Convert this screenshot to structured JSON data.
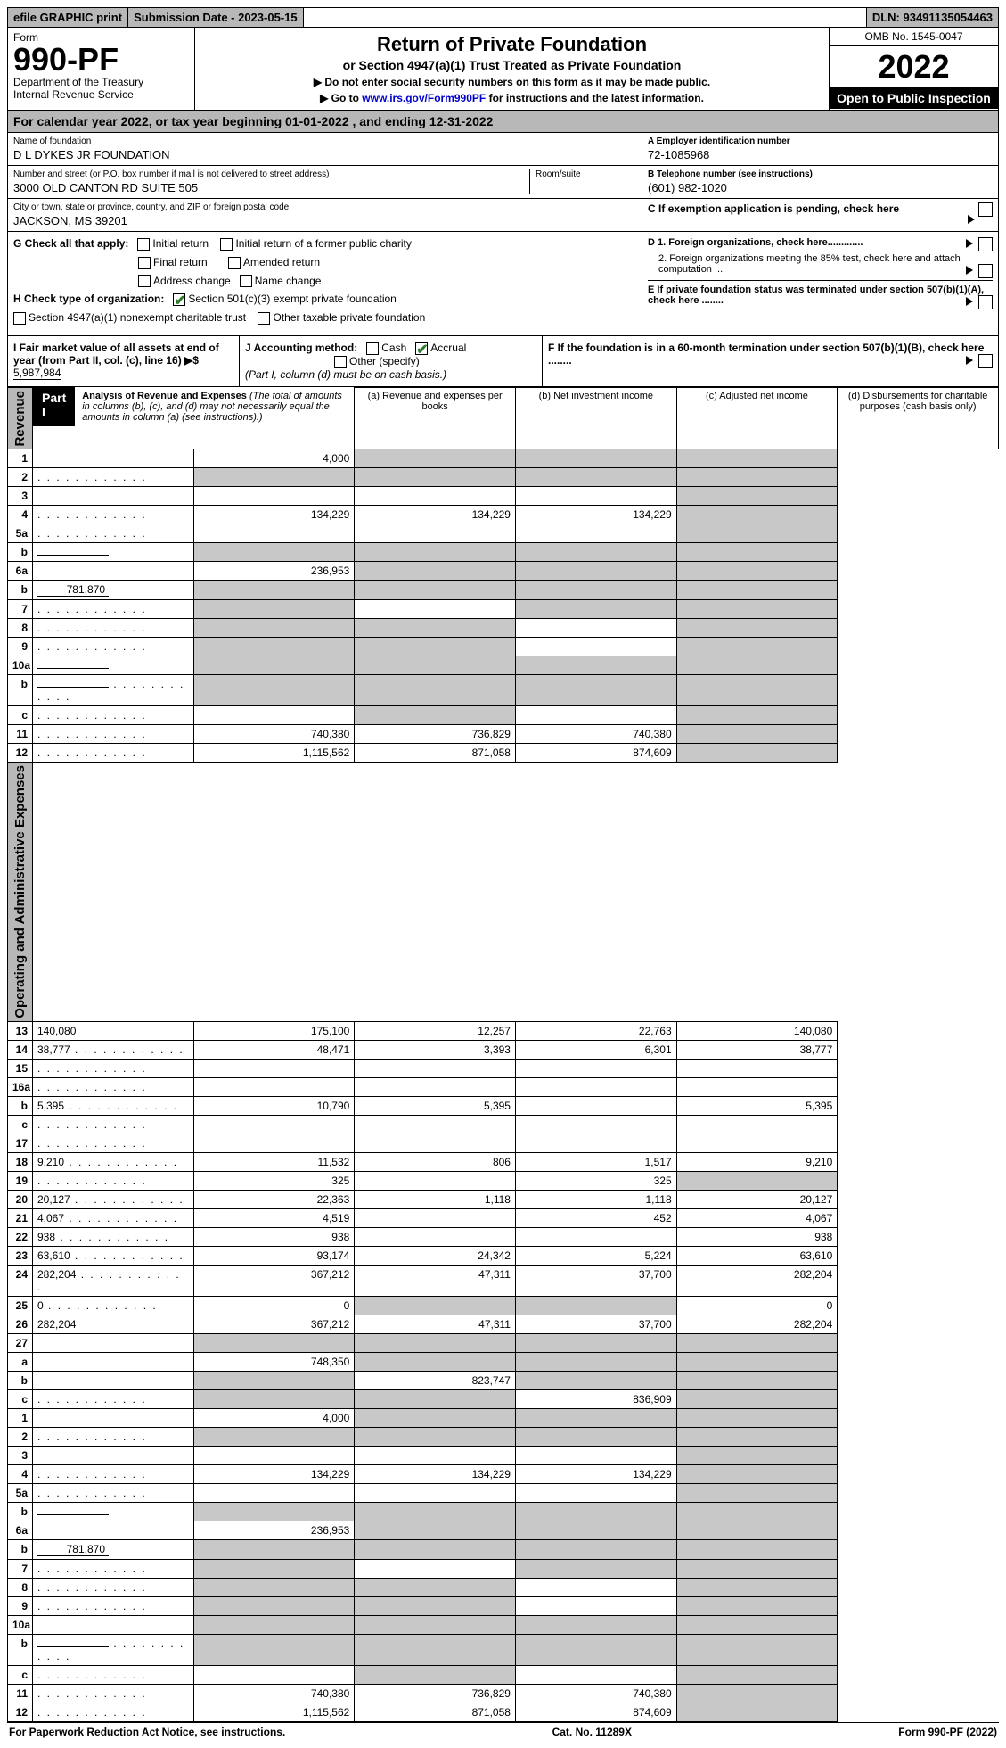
{
  "topbar": {
    "efile": "efile GRAPHIC print",
    "submission": "Submission Date - 2023-05-15",
    "dln": "DLN: 93491135054463"
  },
  "header": {
    "form_word": "Form",
    "form_number": "990-PF",
    "dept1": "Department of the Treasury",
    "dept2": "Internal Revenue Service",
    "title": "Return of Private Foundation",
    "subtitle": "or Section 4947(a)(1) Trust Treated as Private Foundation",
    "inst1": "▶ Do not enter social security numbers on this form as it may be made public.",
    "inst2_pre": "▶ Go to ",
    "inst2_link": "www.irs.gov/Form990PF",
    "inst2_post": " for instructions and the latest information.",
    "omb": "OMB No. 1545-0047",
    "year": "2022",
    "open": "Open to Public Inspection"
  },
  "calendar": "For calendar year 2022, or tax year beginning 01-01-2022              , and ending 12-31-2022",
  "info": {
    "name_lbl": "Name of foundation",
    "name_val": "D L DYKES JR FOUNDATION",
    "addr_lbl": "Number and street (or P.O. box number if mail is not delivered to street address)",
    "addr_val": "3000 OLD CANTON RD SUITE 505",
    "room_lbl": "Room/suite",
    "city_lbl": "City or town, state or province, country, and ZIP or foreign postal code",
    "city_val": "JACKSON, MS  39201",
    "a_lbl": "A Employer identification number",
    "a_val": "72-1085968",
    "b_lbl": "B Telephone number (see instructions)",
    "b_val": "(601) 982-1020",
    "c_lbl": "C If exemption application is pending, check here"
  },
  "g": {
    "label": "G Check all that apply:",
    "initial": "Initial return",
    "final": "Final return",
    "addr": "Address change",
    "initial_former": "Initial return of a former public charity",
    "amended": "Amended return",
    "name": "Name change"
  },
  "h": {
    "label": "H Check type of organization:",
    "c3": "Section 501(c)(3) exempt private foundation",
    "trust": "Section 4947(a)(1) nonexempt charitable trust",
    "other": "Other taxable private foundation"
  },
  "d": {
    "d1": "D 1. Foreign organizations, check here.............",
    "d2": "2. Foreign organizations meeting the 85% test, check here and attach computation ...",
    "e": "E  If private foundation status was terminated under section 507(b)(1)(A), check here ........",
    "f": "F  If the foundation is in a 60-month termination under section 507(b)(1)(B), check here ........"
  },
  "i": {
    "label": "I Fair market value of all assets at end of year (from Part II, col. (c), line 16) ▶$",
    "value": "5,987,984"
  },
  "j": {
    "label": "J Accounting method:",
    "cash": "Cash",
    "accrual": "Accrual",
    "other": "Other (specify)",
    "note": "(Part I, column (d) must be on cash basis.)"
  },
  "part1": {
    "label": "Part I",
    "title": "Analysis of Revenue and Expenses",
    "note": "(The total of amounts in columns (b), (c), and (d) may not necessarily equal the amounts in column (a) (see instructions).)",
    "col_a": "(a)   Revenue and expenses per books",
    "col_b": "(b)   Net investment income",
    "col_c": "(c)   Adjusted net income",
    "col_d": "(d)  Disbursements for charitable purposes (cash basis only)"
  },
  "sidebar": {
    "revenue": "Revenue",
    "expenses": "Operating and Administrative Expenses"
  },
  "rows": [
    {
      "n": "1",
      "d": "",
      "a": "4,000",
      "b": "",
      "c": "",
      "shade": [
        "b",
        "c",
        "d"
      ]
    },
    {
      "n": "2",
      "d": "",
      "dots": true,
      "a": "",
      "b": "",
      "c": "",
      "shade": [
        "a",
        "b",
        "c",
        "d"
      ]
    },
    {
      "n": "3",
      "d": "",
      "a": "",
      "b": "",
      "c": "",
      "shade": [
        "d"
      ]
    },
    {
      "n": "4",
      "d": "",
      "dots": true,
      "a": "134,229",
      "b": "134,229",
      "c": "134,229",
      "shade": [
        "d"
      ]
    },
    {
      "n": "5a",
      "d": "",
      "dots": true,
      "a": "",
      "b": "",
      "c": "",
      "shade": [
        "d"
      ]
    },
    {
      "n": "b",
      "d": "",
      "inline": "",
      "a": "",
      "b": "",
      "c": "",
      "shade": [
        "a",
        "b",
        "c",
        "d"
      ]
    },
    {
      "n": "6a",
      "d": "",
      "a": "236,953",
      "b": "",
      "c": "",
      "shade": [
        "b",
        "c",
        "d"
      ]
    },
    {
      "n": "b",
      "d": "",
      "inline": "781,870",
      "a": "",
      "b": "",
      "c": "",
      "shade": [
        "a",
        "b",
        "c",
        "d"
      ]
    },
    {
      "n": "7",
      "d": "",
      "dots": true,
      "a": "",
      "b": "",
      "c": "",
      "shade": [
        "a",
        "c",
        "d"
      ]
    },
    {
      "n": "8",
      "d": "",
      "dots": true,
      "a": "",
      "b": "",
      "c": "",
      "shade": [
        "a",
        "b",
        "d"
      ]
    },
    {
      "n": "9",
      "d": "",
      "dots": true,
      "a": "",
      "b": "",
      "c": "",
      "shade": [
        "a",
        "b",
        "d"
      ]
    },
    {
      "n": "10a",
      "d": "",
      "inline": "",
      "a": "",
      "b": "",
      "c": "",
      "shade": [
        "a",
        "b",
        "c",
        "d"
      ]
    },
    {
      "n": "b",
      "d": "",
      "dots": true,
      "inline": "",
      "a": "",
      "b": "",
      "c": "",
      "shade": [
        "a",
        "b",
        "c",
        "d"
      ]
    },
    {
      "n": "c",
      "d": "",
      "dots": true,
      "a": "",
      "b": "",
      "c": "",
      "shade": [
        "b",
        "d"
      ]
    },
    {
      "n": "11",
      "d": "",
      "dots": true,
      "a": "740,380",
      "b": "736,829",
      "c": "740,380",
      "shade": [
        "d"
      ]
    },
    {
      "n": "12",
      "d": "",
      "dots": true,
      "a": "1,115,562",
      "b": "871,058",
      "c": "874,609",
      "shade": [
        "d"
      ]
    },
    {
      "n": "13",
      "d": "140,080",
      "a": "175,100",
      "b": "12,257",
      "c": "22,763"
    },
    {
      "n": "14",
      "d": "38,777",
      "dots": true,
      "a": "48,471",
      "b": "3,393",
      "c": "6,301"
    },
    {
      "n": "15",
      "d": "",
      "dots": true,
      "a": "",
      "b": "",
      "c": ""
    },
    {
      "n": "16a",
      "d": "",
      "dots": true,
      "a": "",
      "b": "",
      "c": ""
    },
    {
      "n": "b",
      "d": "5,395",
      "dots": true,
      "a": "10,790",
      "b": "5,395",
      "c": ""
    },
    {
      "n": "c",
      "d": "",
      "dots": true,
      "a": "",
      "b": "",
      "c": ""
    },
    {
      "n": "17",
      "d": "",
      "dots": true,
      "a": "",
      "b": "",
      "c": ""
    },
    {
      "n": "18",
      "d": "9,210",
      "dots": true,
      "a": "11,532",
      "b": "806",
      "c": "1,517"
    },
    {
      "n": "19",
      "d": "",
      "dots": true,
      "a": "325",
      "b": "",
      "c": "325",
      "shade": [
        "d"
      ]
    },
    {
      "n": "20",
      "d": "20,127",
      "dots": true,
      "a": "22,363",
      "b": "1,118",
      "c": "1,118"
    },
    {
      "n": "21",
      "d": "4,067",
      "dots": true,
      "a": "4,519",
      "b": "",
      "c": "452"
    },
    {
      "n": "22",
      "d": "938",
      "dots": true,
      "a": "938",
      "b": "",
      "c": ""
    },
    {
      "n": "23",
      "d": "63,610",
      "dots": true,
      "a": "93,174",
      "b": "24,342",
      "c": "5,224"
    },
    {
      "n": "24",
      "d": "282,204",
      "dots": true,
      "a": "367,212",
      "b": "47,311",
      "c": "37,700"
    },
    {
      "n": "25",
      "d": "0",
      "dots": true,
      "a": "0",
      "b": "",
      "c": "",
      "shade": [
        "b",
        "c"
      ]
    },
    {
      "n": "26",
      "d": "282,204",
      "a": "367,212",
      "b": "47,311",
      "c": "37,700"
    },
    {
      "n": "27",
      "d": "",
      "a": "",
      "b": "",
      "c": "",
      "shade": [
        "a",
        "b",
        "c",
        "d"
      ]
    },
    {
      "n": "a",
      "d": "",
      "a": "748,350",
      "b": "",
      "c": "",
      "shade": [
        "b",
        "c",
        "d"
      ]
    },
    {
      "n": "b",
      "d": "",
      "a": "",
      "b": "823,747",
      "c": "",
      "shade": [
        "a",
        "c",
        "d"
      ]
    },
    {
      "n": "c",
      "d": "",
      "dots": true,
      "a": "",
      "b": "",
      "c": "836,909",
      "shade": [
        "a",
        "b",
        "d"
      ]
    }
  ],
  "footer": {
    "left": "For Paperwork Reduction Act Notice, see instructions.",
    "mid": "Cat. No. 11289X",
    "right": "Form 990-PF (2022)"
  }
}
